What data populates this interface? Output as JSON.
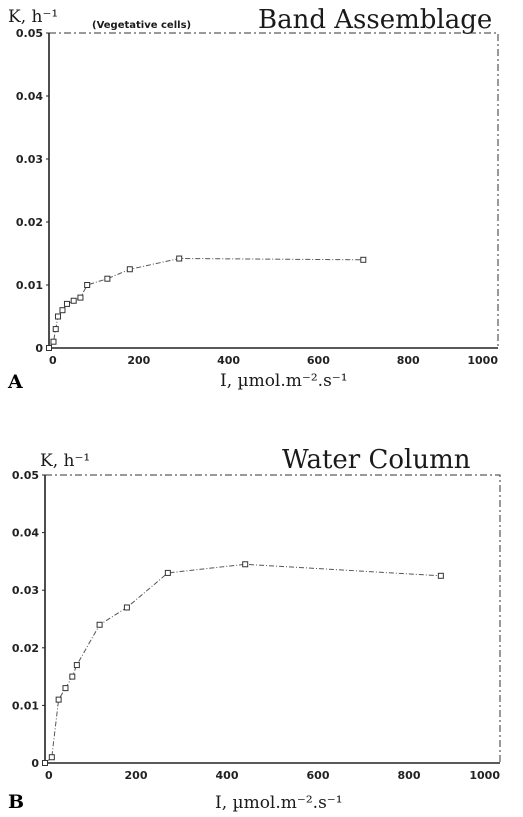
{
  "chart_data": [
    {
      "panel": "A",
      "type": "line",
      "title": "Band Assemblage",
      "ylabel": "K, h⁻¹",
      "ylabel_note": "(Vegetative cells)",
      "xlabel": "I, µmol.m⁻².s⁻¹",
      "xlim": [
        0,
        1000
      ],
      "ylim": [
        0,
        0.05
      ],
      "x_ticks": [
        "0",
        "200",
        "400",
        "600",
        "800",
        "1000"
      ],
      "y_ticks": [
        "0",
        "0.01",
        "0.02",
        "0.03",
        "0.04",
        "0.05"
      ],
      "grid": false,
      "series": [
        {
          "x": [
            0,
            10,
            15,
            20,
            30,
            40,
            55,
            70,
            85,
            130,
            180,
            290,
            700
          ],
          "y": [
            0,
            0.001,
            0.003,
            0.005,
            0.006,
            0.007,
            0.0075,
            0.008,
            0.01,
            0.011,
            0.0125,
            0.0142,
            0.014
          ]
        }
      ]
    },
    {
      "panel": "B",
      "type": "line",
      "title": "Water Column",
      "ylabel": "K, h⁻¹",
      "ylabel_note": "",
      "xlabel": "I, µmol.m⁻².s⁻¹",
      "xlim": [
        0,
        1000
      ],
      "ylim": [
        0,
        0.05
      ],
      "x_ticks": [
        "0",
        "200",
        "400",
        "600",
        "800",
        "1000"
      ],
      "y_ticks": [
        "0",
        "0.01",
        "0.02",
        "0.03",
        "0.04",
        "0.05"
      ],
      "grid": false,
      "series": [
        {
          "x": [
            0,
            15,
            30,
            45,
            60,
            70,
            120,
            180,
            270,
            440,
            870
          ],
          "y": [
            0,
            0.001,
            0.011,
            0.013,
            0.015,
            0.017,
            0.024,
            0.027,
            0.033,
            0.0345,
            0.0325
          ]
        }
      ]
    }
  ]
}
